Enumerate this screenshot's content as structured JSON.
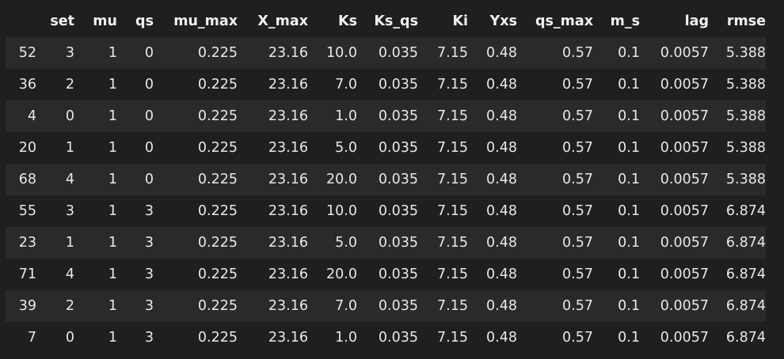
{
  "table": {
    "columns": [
      "",
      "set",
      "mu",
      "qs",
      "mu_max",
      "X_max",
      "Ks",
      "Ks_qs",
      "Ki",
      "Yxs",
      "qs_max",
      "m_s",
      "lag",
      "rmse"
    ],
    "rows": [
      [
        "52",
        "3",
        "1",
        "0",
        "0.225",
        "23.16",
        "10.0",
        "0.035",
        "7.15",
        "0.48",
        "0.57",
        "0.1",
        "0.0057",
        "5.388"
      ],
      [
        "36",
        "2",
        "1",
        "0",
        "0.225",
        "23.16",
        "7.0",
        "0.035",
        "7.15",
        "0.48",
        "0.57",
        "0.1",
        "0.0057",
        "5.388"
      ],
      [
        "4",
        "0",
        "1",
        "0",
        "0.225",
        "23.16",
        "1.0",
        "0.035",
        "7.15",
        "0.48",
        "0.57",
        "0.1",
        "0.0057",
        "5.388"
      ],
      [
        "20",
        "1",
        "1",
        "0",
        "0.225",
        "23.16",
        "5.0",
        "0.035",
        "7.15",
        "0.48",
        "0.57",
        "0.1",
        "0.0057",
        "5.388"
      ],
      [
        "68",
        "4",
        "1",
        "0",
        "0.225",
        "23.16",
        "20.0",
        "0.035",
        "7.15",
        "0.48",
        "0.57",
        "0.1",
        "0.0057",
        "5.388"
      ],
      [
        "55",
        "3",
        "1",
        "3",
        "0.225",
        "23.16",
        "10.0",
        "0.035",
        "7.15",
        "0.48",
        "0.57",
        "0.1",
        "0.0057",
        "6.874"
      ],
      [
        "23",
        "1",
        "1",
        "3",
        "0.225",
        "23.16",
        "5.0",
        "0.035",
        "7.15",
        "0.48",
        "0.57",
        "0.1",
        "0.0057",
        "6.874"
      ],
      [
        "71",
        "4",
        "1",
        "3",
        "0.225",
        "23.16",
        "20.0",
        "0.035",
        "7.15",
        "0.48",
        "0.57",
        "0.1",
        "0.0057",
        "6.874"
      ],
      [
        "39",
        "2",
        "1",
        "3",
        "0.225",
        "23.16",
        "7.0",
        "0.035",
        "7.15",
        "0.48",
        "0.57",
        "0.1",
        "0.0057",
        "6.874"
      ],
      [
        "7",
        "0",
        "1",
        "3",
        "0.225",
        "23.16",
        "1.0",
        "0.035",
        "7.15",
        "0.48",
        "0.57",
        "0.1",
        "0.0057",
        "6.874"
      ]
    ]
  }
}
